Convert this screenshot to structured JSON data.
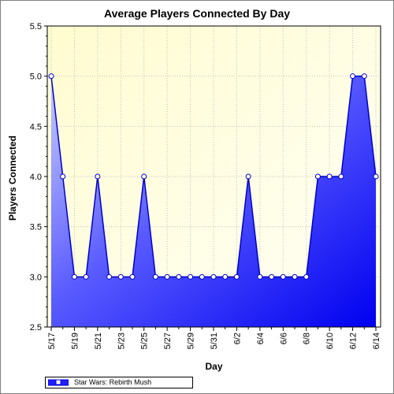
{
  "chart_data": {
    "type": "area",
    "title": "Average Players Connected By Day",
    "xlabel": "Day",
    "ylabel": "Players Connected",
    "ylim": [
      2.5,
      5.5
    ],
    "y_ticks": [
      "2.5",
      "3.0",
      "3.5",
      "4.0",
      "4.5",
      "5.0",
      "5.5"
    ],
    "x": [
      "5/17",
      "5/18",
      "5/19",
      "5/20",
      "5/21",
      "5/22",
      "5/23",
      "5/24",
      "5/25",
      "5/26",
      "5/27",
      "5/28",
      "5/29",
      "5/30",
      "5/31",
      "6/1",
      "6/2",
      "6/3",
      "6/4",
      "6/5",
      "6/6",
      "6/7",
      "6/8",
      "6/9",
      "6/10",
      "6/11",
      "6/12",
      "6/13",
      "6/14"
    ],
    "x_tick_labels": [
      "5/17",
      "5/19",
      "5/21",
      "5/23",
      "5/25",
      "5/27",
      "5/29",
      "5/31",
      "6/2",
      "6/4",
      "6/6",
      "6/8",
      "6/10",
      "6/12",
      "6/14"
    ],
    "series": [
      {
        "name": "Star Wars: Rebirth Mush",
        "values": [
          5.0,
          4.0,
          3.0,
          3.0,
          4.0,
          3.0,
          3.0,
          3.0,
          4.0,
          3.0,
          3.0,
          3.0,
          3.0,
          3.0,
          3.0,
          3.0,
          3.0,
          4.0,
          3.0,
          3.0,
          3.0,
          3.0,
          3.0,
          4.0,
          4.0,
          4.0,
          5.0,
          5.0,
          4.0
        ]
      }
    ],
    "grid": true,
    "legend": "bottom-left",
    "colors": {
      "line": "#0000cc",
      "fill_dark": "#0000ff",
      "fill_light": "#c4c8ff",
      "background": "#fffee0",
      "grid": "#c8c8c8"
    }
  }
}
